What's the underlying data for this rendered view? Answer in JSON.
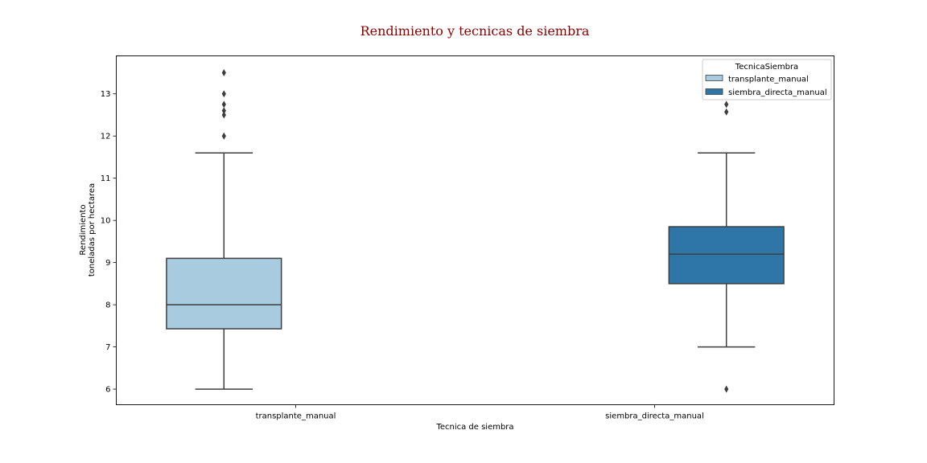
{
  "chart_data": {
    "type": "box",
    "title": "Rendimiento y tecnicas de siembra",
    "title_color": "#8b0000",
    "xlabel": "Tecnica de siembra",
    "ylabel_lines": [
      "Rendimiento",
      "toneladas por hectarea"
    ],
    "categories": [
      "transplante_manual",
      "siembra_directa_manual"
    ],
    "yticks": [
      6,
      7,
      8,
      9,
      10,
      11,
      12,
      13
    ],
    "ylim": [
      5.63,
      13.9
    ],
    "grid": false,
    "legend": {
      "title": "TecnicaSiembra",
      "position": "top-right",
      "entries": [
        "transplante_manual",
        "siembra_directa_manual"
      ]
    },
    "series": [
      {
        "name": "transplante_manual",
        "color": "#a9cbe0",
        "category_index": 0,
        "whisker_low": 6.0,
        "q1": 7.43,
        "median": 8.0,
        "q3": 9.1,
        "whisker_high": 11.6,
        "outliers": [
          12.0,
          12.5,
          12.6,
          12.75,
          13.0,
          13.5
        ]
      },
      {
        "name": "siembra_directa_manual",
        "color": "#2e75a8",
        "category_index": 1,
        "whisker_low": 7.0,
        "q1": 8.5,
        "median": 9.2,
        "q3": 9.85,
        "whisker_high": 11.6,
        "outliers": [
          6.0,
          12.57,
          12.75
        ]
      }
    ]
  }
}
